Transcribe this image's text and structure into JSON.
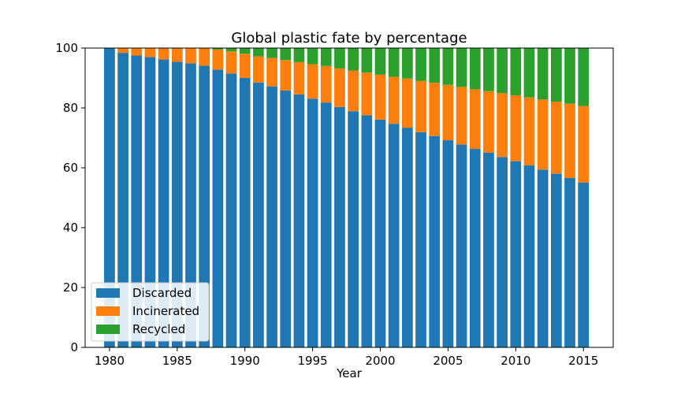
{
  "chart_data": {
    "type": "bar",
    "stacked": true,
    "title": "Global plastic fate by percentage",
    "xlabel": "Year",
    "ylabel": "",
    "ylim": [
      0,
      100
    ],
    "xlim": [
      1978.2,
      1917.2
    ],
    "x_ticks": [
      1980,
      1985,
      1990,
      1995,
      2000,
      2005,
      2010,
      2015
    ],
    "y_ticks": [
      0,
      20,
      40,
      60,
      80,
      100
    ],
    "grid": false,
    "legend_position": "lower-left",
    "x": [
      1980,
      1981,
      1982,
      1983,
      1984,
      1985,
      1986,
      1987,
      1988,
      1989,
      1990,
      1991,
      1992,
      1993,
      1994,
      1995,
      1996,
      1997,
      1998,
      1999,
      2000,
      2001,
      2002,
      2003,
      2004,
      2005,
      2006,
      2007,
      2008,
      2009,
      2010,
      2011,
      2012,
      2013,
      2014,
      2015
    ],
    "series": [
      {
        "name": "Discarded",
        "color": "#1f77b4",
        "values": [
          100,
          98.4,
          97.5,
          97,
          96.2,
          95.4,
          94.9,
          94.1,
          92.8,
          91.5,
          90,
          88.5,
          87.2,
          85.8,
          84.5,
          83.1,
          81.8,
          80.3,
          78.9,
          77.5,
          76.1,
          74.7,
          73.4,
          71.9,
          70.6,
          69.2,
          67.8,
          66.3,
          65,
          63.6,
          62.2,
          60.8,
          59.4,
          58,
          56.6,
          55.1
        ]
      },
      {
        "name": "Incinerated",
        "color": "#ff7f0e",
        "values": [
          0,
          1.6,
          2.5,
          3,
          3.8,
          4.6,
          5.1,
          5.9,
          6.7,
          7.4,
          8.1,
          8.7,
          9.5,
          10.2,
          10.8,
          11.5,
          12.2,
          12.9,
          13.6,
          14.3,
          15,
          15.7,
          16.4,
          17.1,
          17.8,
          18.5,
          19.2,
          19.9,
          20.6,
          21.3,
          22,
          22.7,
          23.4,
          24.1,
          24.8,
          25.5
        ]
      },
      {
        "name": "Recycled",
        "color": "#2ca02c",
        "values": [
          0,
          0,
          0,
          0,
          0,
          0,
          0,
          0,
          0.5,
          1.1,
          1.9,
          2.8,
          3.3,
          4,
          4.7,
          5.4,
          6,
          6.8,
          7.5,
          8.2,
          8.9,
          9.6,
          10.2,
          11,
          11.6,
          12.3,
          13,
          13.8,
          14.4,
          15.1,
          15.8,
          16.5,
          17.2,
          17.9,
          18.6,
          19.4
        ]
      }
    ]
  }
}
